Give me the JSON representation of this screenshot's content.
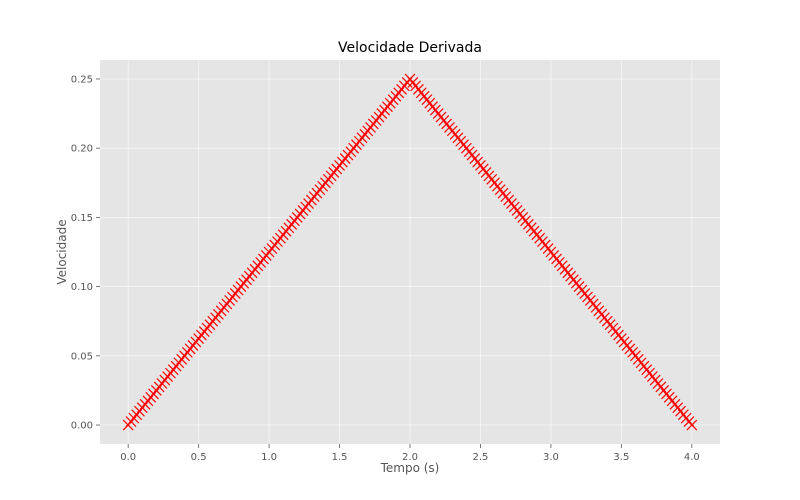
{
  "chart_data": {
    "type": "scatter",
    "title": "Velocidade Derivada",
    "xlabel": "Tempo (s)",
    "ylabel": "Velocidade",
    "xlim": [
      -0.2,
      4.2
    ],
    "ylim": [
      -0.0137,
      0.2637
    ],
    "xticks": [
      0.0,
      0.5,
      1.0,
      1.5,
      2.0,
      2.5,
      3.0,
      3.5,
      4.0
    ],
    "xtick_labels": [
      "0.0",
      "0.5",
      "1.0",
      "1.5",
      "2.0",
      "2.5",
      "3.0",
      "3.5",
      "4.0"
    ],
    "yticks": [
      0.0,
      0.05,
      0.1,
      0.15,
      0.2,
      0.25
    ],
    "ytick_labels": [
      "0.00",
      "0.05",
      "0.10",
      "0.15",
      "0.20",
      "0.25"
    ],
    "grid": true,
    "marker": "x",
    "color": "#ff0000",
    "background_color": "#e5e5e5",
    "series": [
      {
        "x_start": 0.0,
        "x_end": 4.0,
        "x_step": 0.02,
        "values_rule": "y = x/8 for x <= 2; y = (4 - x)/8 for x > 2"
      }
    ]
  }
}
